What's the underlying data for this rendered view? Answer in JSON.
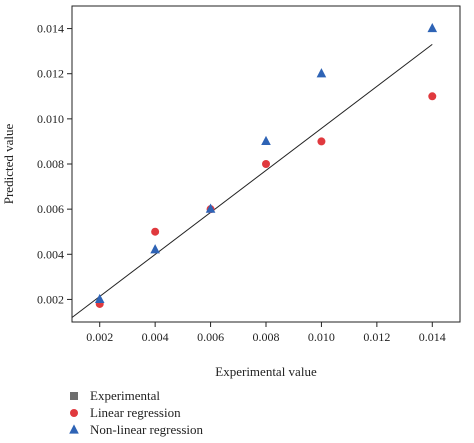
{
  "chart_data": {
    "type": "scatter",
    "xlabel": "Experimental value",
    "ylabel": "Predicted value",
    "xlim": [
      0.001,
      0.015
    ],
    "ylim": [
      0.001,
      0.015
    ],
    "x_ticks": [
      "0.002",
      "0.004",
      "0.006",
      "0.008",
      "0.010",
      "0.012",
      "0.014"
    ],
    "y_ticks": [
      "0.002",
      "0.004",
      "0.006",
      "0.008",
      "0.010",
      "0.012",
      "0.014"
    ],
    "grid": false,
    "legend_position": "bottom-left",
    "series": [
      {
        "name": "Experimental",
        "marker": "square",
        "color": "#6e6e6e",
        "fit_line": {
          "x": [
            0.001,
            0.014
          ],
          "y": [
            0.0012,
            0.0133
          ],
          "color": "#222222"
        },
        "points": []
      },
      {
        "name": "Linear regression",
        "marker": "circle",
        "color": "#e0393e",
        "points": [
          {
            "x": 0.002,
            "y": 0.0018
          },
          {
            "x": 0.004,
            "y": 0.005
          },
          {
            "x": 0.006,
            "y": 0.006
          },
          {
            "x": 0.008,
            "y": 0.008
          },
          {
            "x": 0.01,
            "y": 0.009
          },
          {
            "x": 0.014,
            "y": 0.011
          }
        ]
      },
      {
        "name": "Non-linear regression",
        "marker": "triangle",
        "color": "#2e63b5",
        "points": [
          {
            "x": 0.002,
            "y": 0.002
          },
          {
            "x": 0.004,
            "y": 0.0042
          },
          {
            "x": 0.006,
            "y": 0.006
          },
          {
            "x": 0.008,
            "y": 0.009
          },
          {
            "x": 0.01,
            "y": 0.012
          },
          {
            "x": 0.014,
            "y": 0.014
          }
        ]
      }
    ]
  }
}
